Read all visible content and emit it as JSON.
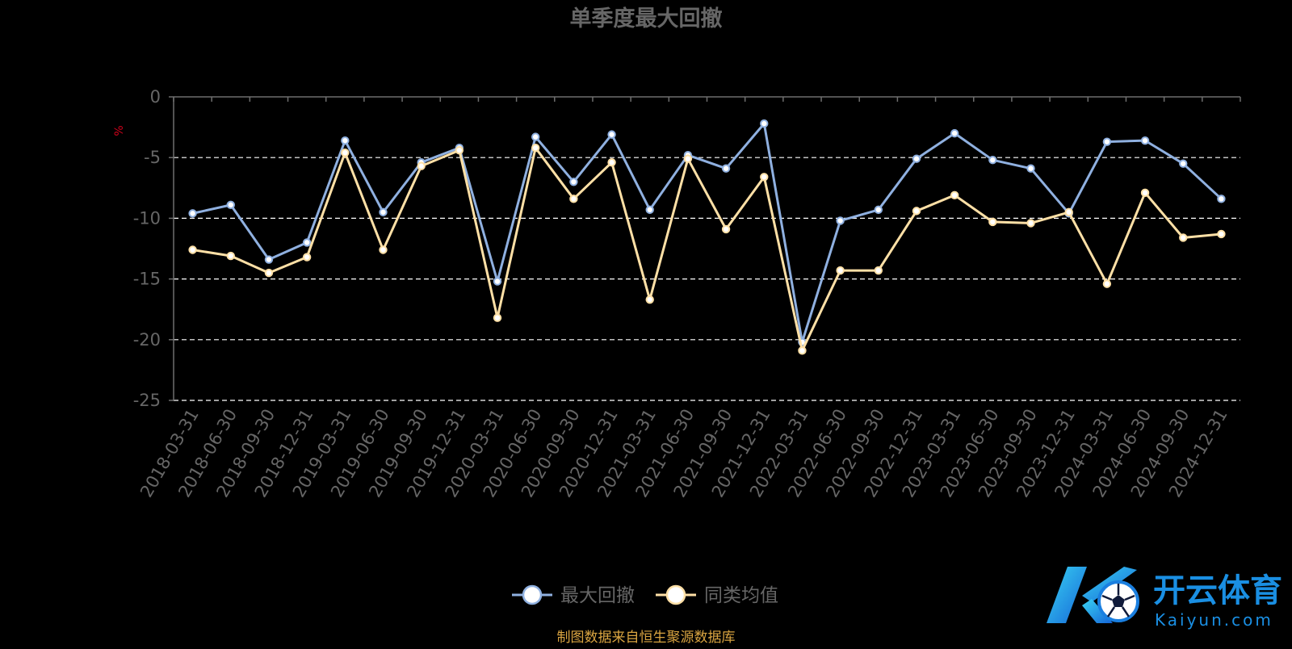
{
  "chart_data": {
    "type": "line",
    "title": "单季度最大回撤",
    "ylabel": "%",
    "xlabel": "",
    "ylim": [
      -25,
      0
    ],
    "yticks": [
      0,
      -5,
      -10,
      -15,
      -20,
      -25
    ],
    "grid": true,
    "legend_position": "bottom-center",
    "categories": [
      "2018-03-31",
      "2018-06-30",
      "2018-09-30",
      "2018-12-31",
      "2019-03-31",
      "2019-06-30",
      "2019-09-30",
      "2019-12-31",
      "2020-03-31",
      "2020-06-30",
      "2020-09-30",
      "2020-12-31",
      "2021-03-31",
      "2021-06-30",
      "2021-09-30",
      "2021-12-31",
      "2022-03-31",
      "2022-06-30",
      "2022-09-30",
      "2022-12-31",
      "2023-03-31",
      "2023-06-30",
      "2023-09-30",
      "2023-12-31",
      "2024-03-31",
      "2024-06-30",
      "2024-09-30",
      "2024-12-31"
    ],
    "series": [
      {
        "name": "最大回撤",
        "color": "#8fb0e0",
        "values": [
          -9.6,
          -8.9,
          -13.4,
          -12.0,
          -3.6,
          -9.5,
          -5.4,
          -4.2,
          -15.2,
          -3.3,
          -7.0,
          -3.1,
          -9.3,
          -4.8,
          -5.9,
          -2.2,
          -20.2,
          -10.2,
          -9.3,
          -5.1,
          -3.0,
          -5.2,
          -5.9,
          -9.6,
          -3.7,
          -3.6,
          -5.5,
          -8.4
        ]
      },
      {
        "name": "同类均值",
        "color": "#ffe0a6",
        "values": [
          -12.6,
          -13.1,
          -14.5,
          -13.2,
          -4.6,
          -12.6,
          -5.7,
          -4.4,
          -18.2,
          -4.2,
          -8.4,
          -5.4,
          -16.7,
          -5.1,
          -10.9,
          -6.6,
          -20.9,
          -14.3,
          -14.3,
          -9.4,
          -8.1,
          -10.3,
          -10.4,
          -9.5,
          -15.4,
          -7.9,
          -11.6,
          -11.3
        ]
      }
    ],
    "source_note": "制图数据来自恒生聚源数据库",
    "colors": {
      "background": "#000000",
      "axis": "#6e6e6e",
      "grid": "#ffffff",
      "text": "#666666",
      "ylabel_color": "#d0021b",
      "source_color": "#d9a441"
    }
  },
  "watermark": {
    "brand_cn": "开云体育",
    "brand_en": "Kaiyun.com"
  }
}
